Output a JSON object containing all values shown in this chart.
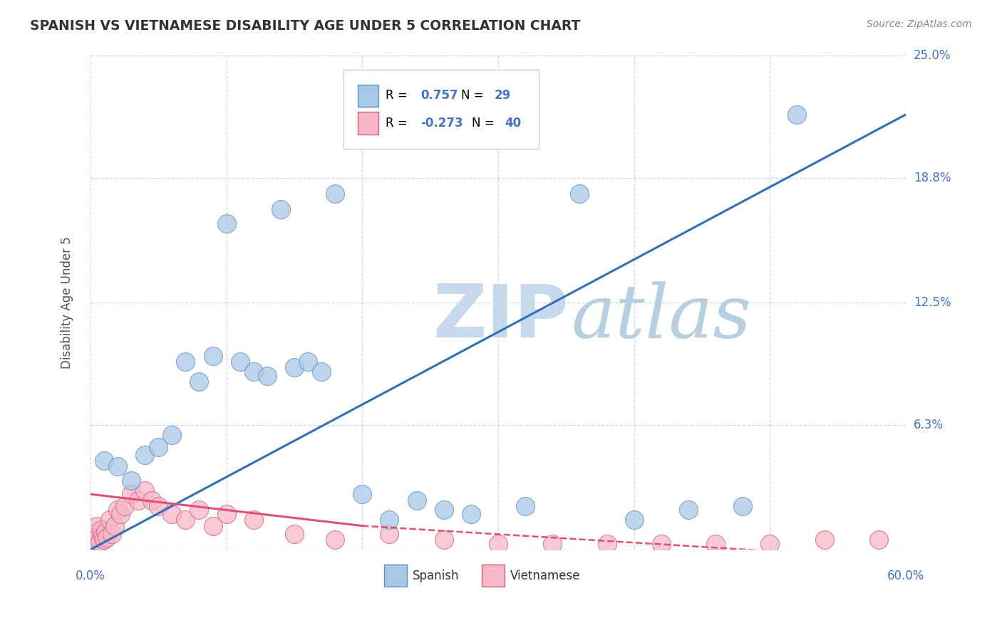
{
  "title": "SPANISH VS VIETNAMESE DISABILITY AGE UNDER 5 CORRELATION CHART",
  "source_text": "Source: ZipAtlas.com",
  "ylabel": "Disability Age Under 5",
  "ytick_vals": [
    0.0,
    6.3,
    12.5,
    18.8,
    25.0
  ],
  "xlim": [
    0.0,
    60.0
  ],
  "ylim": [
    0.0,
    25.0
  ],
  "spanish_R": 0.757,
  "spanish_N": 29,
  "vietnamese_R": -0.273,
  "vietnamese_N": 40,
  "spanish_scatter_color": "#a8c8e8",
  "vietnamese_scatter_color": "#f8b8c8",
  "spanish_edge_color": "#6090c0",
  "vietnamese_edge_color": "#d06080",
  "spanish_line_color": "#3070b8",
  "vietnamese_line_color": "#e05070",
  "watermark_zip_color": "#c0d8f0",
  "watermark_atlas_color": "#b8cce0",
  "title_color": "#333333",
  "axis_tick_color": "#4472c4",
  "source_color": "#888888",
  "background_color": "#ffffff",
  "grid_color": "#c8d8e8",
  "legend_box_color": "#f0f0f0",
  "legend_R_color": "#000000",
  "legend_val_color": "#4472c4",
  "spanish_x": [
    1.0,
    2.0,
    3.0,
    4.0,
    5.0,
    6.0,
    7.0,
    8.0,
    9.0,
    10.0,
    11.0,
    12.0,
    13.0,
    14.0,
    15.0,
    16.0,
    17.0,
    18.0,
    20.0,
    22.0,
    24.0,
    26.0,
    28.0,
    32.0,
    36.0,
    40.0,
    44.0,
    48.0,
    52.0
  ],
  "spanish_y": [
    4.5,
    4.2,
    3.5,
    4.8,
    5.2,
    5.8,
    9.5,
    8.5,
    9.8,
    16.5,
    9.5,
    9.0,
    8.8,
    17.2,
    9.2,
    9.5,
    9.0,
    18.0,
    2.8,
    1.5,
    2.5,
    2.0,
    1.8,
    2.2,
    18.0,
    1.5,
    2.0,
    2.2,
    22.0
  ],
  "vietnamese_x": [
    0.2,
    0.3,
    0.4,
    0.5,
    0.6,
    0.7,
    0.8,
    0.9,
    1.0,
    1.1,
    1.2,
    1.4,
    1.6,
    1.8,
    2.0,
    2.2,
    2.5,
    3.0,
    3.5,
    4.0,
    4.5,
    5.0,
    6.0,
    7.0,
    8.0,
    9.0,
    10.0,
    12.0,
    15.0,
    18.0,
    22.0,
    26.0,
    30.0,
    34.0,
    38.0,
    42.0,
    46.0,
    50.0,
    54.0,
    58.0
  ],
  "vietnamese_y": [
    0.5,
    0.8,
    0.3,
    1.2,
    0.6,
    0.4,
    1.0,
    0.7,
    0.5,
    0.9,
    0.6,
    1.5,
    0.8,
    1.2,
    2.0,
    1.8,
    2.2,
    2.8,
    2.5,
    3.0,
    2.5,
    2.2,
    1.8,
    1.5,
    2.0,
    1.2,
    1.8,
    1.5,
    0.8,
    0.5,
    0.8,
    0.5,
    0.3,
    0.3,
    0.3,
    0.3,
    0.3,
    0.3,
    0.5,
    0.5
  ],
  "spanish_line_x0": 0.0,
  "spanish_line_y0": 0.0,
  "spanish_line_x1": 60.0,
  "spanish_line_y1": 22.0,
  "viet_solid_x0": 0.0,
  "viet_solid_y0": 2.8,
  "viet_solid_x1": 20.0,
  "viet_solid_y1": 1.2,
  "viet_dash_x0": 20.0,
  "viet_dash_y0": 1.2,
  "viet_dash_x1": 60.0,
  "viet_dash_y1": -0.5
}
